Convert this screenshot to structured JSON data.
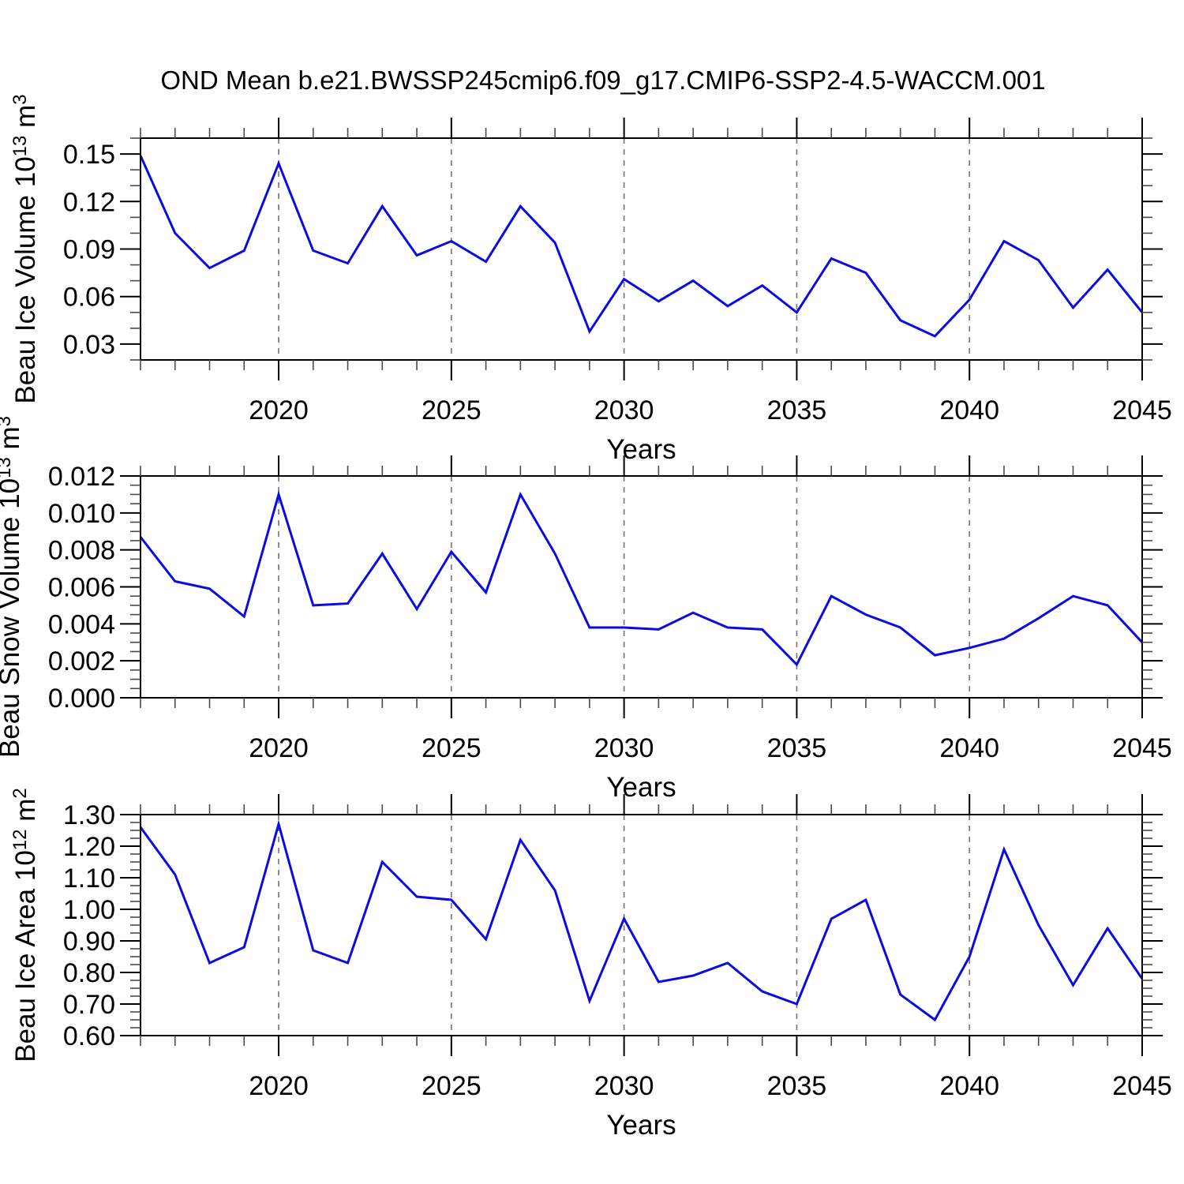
{
  "title": "OND Mean b.e21.BWSSP245cmip6.f09_g17.CMIP6-SSP2-4.5-WACCM.001",
  "colors": {
    "line": "#0a0ae6",
    "axis": "#000000",
    "minor_tick": "#4a4a4a",
    "gridline": "#7a7a7a",
    "text": "#000000",
    "background": "#ffffff"
  },
  "x_axis": {
    "label": "Years",
    "range": [
      2016,
      2045
    ],
    "major_tick_years": [
      2020,
      2025,
      2030,
      2035,
      2040,
      2045
    ],
    "major_tick_labels": [
      "2020",
      "2025",
      "2030",
      "2035",
      "2040",
      "2045"
    ],
    "minor_tick_step_years": 1,
    "dashed_gridline_years": [
      2020,
      2025,
      2030,
      2035,
      2040
    ]
  },
  "chart_data": [
    {
      "type": "line",
      "name": "beau-ice-volume",
      "ylabel": "Beau Ice Volume 10¹³ m³",
      "ylabel_parts": [
        {
          "text": "Beau Ice Volume 10"
        },
        {
          "text": "13",
          "sup": true
        },
        {
          "text": " m"
        },
        {
          "text": "3",
          "sup": true
        }
      ],
      "xlabel": "Years",
      "ylim": [
        0.02,
        0.16
      ],
      "ytick_values": [
        0.03,
        0.06,
        0.09,
        0.12,
        0.15
      ],
      "ytick_labels": [
        "0.03",
        "0.06",
        "0.09",
        "0.12",
        "0.15"
      ],
      "yminor_step": 0.01,
      "grid": "vertical-dashed",
      "legend": "none",
      "x": [
        2016,
        2017,
        2018,
        2019,
        2020,
        2021,
        2022,
        2023,
        2024,
        2025,
        2026,
        2027,
        2028,
        2029,
        2030,
        2031,
        2032,
        2033,
        2034,
        2035,
        2036,
        2037,
        2038,
        2039,
        2040,
        2041,
        2042,
        2043,
        2044,
        2045
      ],
      "values": [
        0.149,
        0.1,
        0.078,
        0.089,
        0.144,
        0.089,
        0.081,
        0.117,
        0.086,
        0.095,
        0.082,
        0.117,
        0.094,
        0.038,
        0.071,
        0.057,
        0.07,
        0.054,
        0.067,
        0.05,
        0.084,
        0.075,
        0.045,
        0.035,
        0.058,
        0.095,
        0.083,
        0.053,
        0.077,
        0.05
      ]
    },
    {
      "type": "line",
      "name": "beau-snow-volume",
      "ylabel": "Beau Snow Volume 10¹³ m³",
      "ylabel_parts": [
        {
          "text": "Beau Snow Volume 10"
        },
        {
          "text": "13",
          "sup": true
        },
        {
          "text": " m"
        },
        {
          "text": "3",
          "sup": true
        }
      ],
      "xlabel": "Years",
      "ylim": [
        0.0,
        0.012
      ],
      "ytick_values": [
        0.0,
        0.002,
        0.004,
        0.006,
        0.008,
        0.01,
        0.012
      ],
      "ytick_labels": [
        "0.000",
        "0.002",
        "0.004",
        "0.006",
        "0.008",
        "0.010",
        "0.012"
      ],
      "yminor_step": 0.0005,
      "grid": "vertical-dashed",
      "legend": "none",
      "x": [
        2016,
        2017,
        2018,
        2019,
        2020,
        2021,
        2022,
        2023,
        2024,
        2025,
        2026,
        2027,
        2028,
        2029,
        2030,
        2031,
        2032,
        2033,
        2034,
        2035,
        2036,
        2037,
        2038,
        2039,
        2040,
        2041,
        2042,
        2043,
        2044,
        2045
      ],
      "values": [
        0.0087,
        0.0063,
        0.0059,
        0.0044,
        0.011,
        0.005,
        0.0051,
        0.0078,
        0.0048,
        0.0079,
        0.0057,
        0.011,
        0.0078,
        0.0038,
        0.0038,
        0.0037,
        0.0046,
        0.0038,
        0.0037,
        0.0018,
        0.0055,
        0.0045,
        0.0038,
        0.0023,
        0.0027,
        0.0032,
        0.0043,
        0.0055,
        0.005,
        0.003
      ]
    },
    {
      "type": "line",
      "name": "beau-ice-area",
      "ylabel": "Beau Ice Area 10¹² m²",
      "ylabel_parts": [
        {
          "text": "Beau Ice Area 10"
        },
        {
          "text": "12",
          "sup": true
        },
        {
          "text": " m"
        },
        {
          "text": "2",
          "sup": true
        }
      ],
      "xlabel": "Years",
      "ylim": [
        0.6,
        1.3
      ],
      "ytick_values": [
        0.6,
        0.7,
        0.8,
        0.9,
        1.0,
        1.1,
        1.2,
        1.3
      ],
      "ytick_labels": [
        "0.60",
        "0.70",
        "0.80",
        "0.90",
        "1.00",
        "1.10",
        "1.20",
        "1.30"
      ],
      "yminor_step": 0.025,
      "grid": "vertical-dashed",
      "legend": "none",
      "x": [
        2016,
        2017,
        2018,
        2019,
        2020,
        2021,
        2022,
        2023,
        2024,
        2025,
        2026,
        2027,
        2028,
        2029,
        2030,
        2031,
        2032,
        2033,
        2034,
        2035,
        2036,
        2037,
        2038,
        2039,
        2040,
        2041,
        2042,
        2043,
        2044,
        2045
      ],
      "values": [
        1.26,
        1.11,
        0.83,
        0.88,
        1.27,
        0.87,
        0.83,
        1.15,
        1.04,
        1.03,
        0.905,
        1.22,
        1.06,
        0.71,
        0.97,
        0.77,
        0.79,
        0.83,
        0.74,
        0.7,
        0.97,
        1.03,
        0.73,
        0.65,
        0.85,
        1.19,
        0.95,
        0.76,
        0.94,
        0.78
      ]
    }
  ]
}
